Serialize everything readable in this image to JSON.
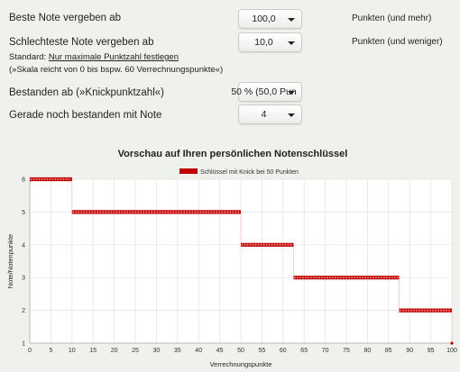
{
  "settings": {
    "best_label": "Beste Note vergeben ab",
    "best_value": "100,0",
    "best_unit": "Punkten (und mehr)",
    "worst_label": "Schlechteste Note vergeben ab",
    "worst_value": "10,0",
    "worst_unit": "Punkten (und weniger)",
    "standard_prefix": "Standard:",
    "standard_link": "Nur maximale Punktzahl festlegen",
    "scale_note": "(»Skala reicht von 0 bis bspw. 60 Verrechnungspunkte«)",
    "pass_label": "Bestanden ab (»Knickpunktzahl«)",
    "pass_value": "50 % (50,0 Pun",
    "pass_grade_label": "Gerade noch bestanden mit Note",
    "pass_grade_value": "4"
  },
  "colors": {
    "series": "#c00000",
    "grid": "#e2e2e2",
    "background": "#ffffff"
  },
  "chart_data": {
    "type": "line",
    "title": "Vorschau auf Ihren persönlichen Notenschlüssel",
    "xlabel": "Verrechnungspunkte",
    "ylabel": "Note/Notenpunkte",
    "xlim": [
      0,
      100
    ],
    "ylim": [
      1,
      6
    ],
    "xticks": [
      0,
      5,
      10,
      15,
      20,
      25,
      30,
      35,
      40,
      45,
      50,
      55,
      60,
      65,
      70,
      75,
      80,
      85,
      90,
      95,
      100
    ],
    "yticks": [
      1,
      2,
      3,
      4,
      5,
      6
    ],
    "grid": true,
    "legend_position": "top",
    "series": [
      {
        "name": "Schlüssel mit Knick bei 50 Punkten",
        "segments": [
          {
            "x_from": 0,
            "x_to": 10,
            "y": 6
          },
          {
            "x_from": 10,
            "x_to": 50,
            "y": 5
          },
          {
            "x_from": 50,
            "x_to": 62.5,
            "y": 4
          },
          {
            "x_from": 62.5,
            "x_to": 87.5,
            "y": 3
          },
          {
            "x_from": 87.5,
            "x_to": 100,
            "y": 2
          },
          {
            "x_from": 100,
            "x_to": 100,
            "y": 1
          }
        ]
      }
    ]
  }
}
